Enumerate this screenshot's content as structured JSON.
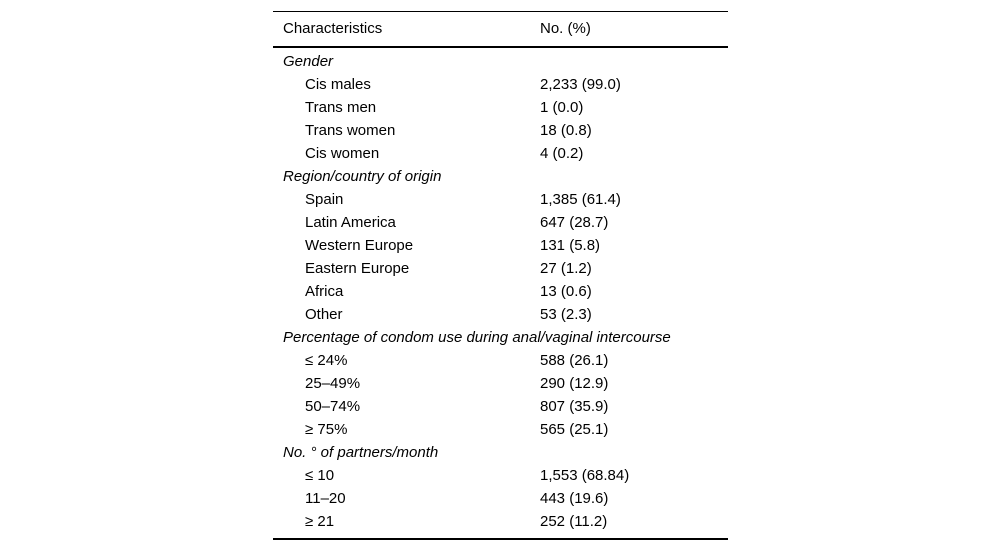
{
  "table": {
    "header": {
      "col1": "Characteristics",
      "col2": "No. (%)"
    },
    "rows": [
      {
        "type": "category",
        "label": "Gender",
        "value": ""
      },
      {
        "type": "item",
        "label": "Cis males",
        "value": "2,233 (99.0)"
      },
      {
        "type": "item",
        "label": "Trans men",
        "value": "1 (0.0)"
      },
      {
        "type": "item",
        "label": "Trans women",
        "value": "18 (0.8)"
      },
      {
        "type": "item",
        "label": "Cis women",
        "value": "4 (0.2)"
      },
      {
        "type": "category",
        "label": "Region/country of origin",
        "value": ""
      },
      {
        "type": "item",
        "label": "Spain",
        "value": "1,385 (61.4)"
      },
      {
        "type": "item",
        "label": "Latin America",
        "value": "647 (28.7)"
      },
      {
        "type": "item",
        "label": "Western Europe",
        "value": "131 (5.8)"
      },
      {
        "type": "item",
        "label": "Eastern Europe",
        "value": "27 (1.2)"
      },
      {
        "type": "item",
        "label": "Africa",
        "value": "13 (0.6)"
      },
      {
        "type": "item",
        "label": "Other",
        "value": "53 (2.3)"
      },
      {
        "type": "category",
        "label": "Percentage of condom use during anal/vaginal intercourse",
        "value": ""
      },
      {
        "type": "item",
        "label": "≤ 24%",
        "value": "588 (26.1)"
      },
      {
        "type": "item",
        "label": "25–49%",
        "value": "290 (12.9)"
      },
      {
        "type": "item",
        "label": "50–74%",
        "value": "807 (35.9)"
      },
      {
        "type": "item",
        "label": "≥ 75%",
        "value": "565 (25.1)"
      },
      {
        "type": "category",
        "label": "No. ° of partners/month",
        "value": ""
      },
      {
        "type": "item",
        "label": "≤ 10",
        "value": "1,553 (68.84)"
      },
      {
        "type": "item",
        "label": "11–20",
        "value": "443 (19.6)"
      },
      {
        "type": "item",
        "label": "≥ 21",
        "value": "252 (11.2)"
      }
    ],
    "colors": {
      "text": "#000000",
      "rule": "#000000",
      "background": "#ffffff"
    }
  }
}
